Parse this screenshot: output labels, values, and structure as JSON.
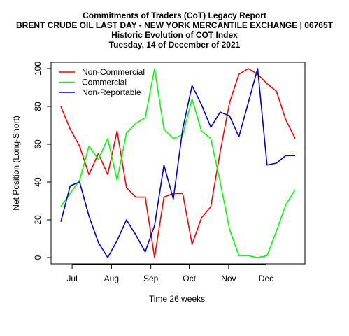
{
  "chart_data": {
    "type": "line",
    "title": [
      "Commitments of Traders (CoT) Legacy Report",
      "BRENT CRUDE OIL LAST DAY - NEW YORK MERCANTILE EXCHANGE | 06765T",
      "Historic Evolution of COT Index",
      "Tuesday, 14 of December of 2021"
    ],
    "xlabel": "Time  26  weeks",
    "ylabel": "Net Position (Long-Short)",
    "ylim": [
      0,
      100
    ],
    "yticks": [
      0,
      20,
      40,
      60,
      80,
      100
    ],
    "xticks": [
      "Jul",
      "Aug",
      "Sep",
      "Oct",
      "Nov",
      "Dec"
    ],
    "xtick_weeks": [
      1.2,
      5.4,
      9.6,
      13.7,
      17.9,
      21.9
    ],
    "xlim": [
      -1,
      24
    ],
    "legend_position": "top-left",
    "grid": false,
    "series": [
      {
        "name": "Non-Commercial",
        "color": "#ff0000",
        "values": [
          80,
          68,
          59,
          44,
          55,
          44,
          67,
          37,
          32,
          32,
          0,
          32,
          34,
          34,
          7,
          21,
          27,
          56,
          82,
          97,
          100,
          97,
          92,
          88,
          73,
          63
        ]
      },
      {
        "name": "Commercial",
        "color": "#00ff00",
        "values": [
          27,
          34,
          41,
          59,
          52,
          63,
          41,
          66,
          71,
          74,
          100,
          68,
          63,
          65,
          84,
          67,
          63,
          40,
          15,
          1,
          1,
          0,
          1,
          14,
          28,
          36
        ]
      },
      {
        "name": "Non-Reportable",
        "color": "#0000cc",
        "values": [
          19,
          38,
          40,
          22,
          8,
          0,
          9,
          20,
          12,
          3,
          17,
          49,
          31,
          68,
          91,
          81,
          69,
          77,
          75,
          64,
          82,
          100,
          49,
          50,
          54,
          54
        ]
      }
    ]
  }
}
